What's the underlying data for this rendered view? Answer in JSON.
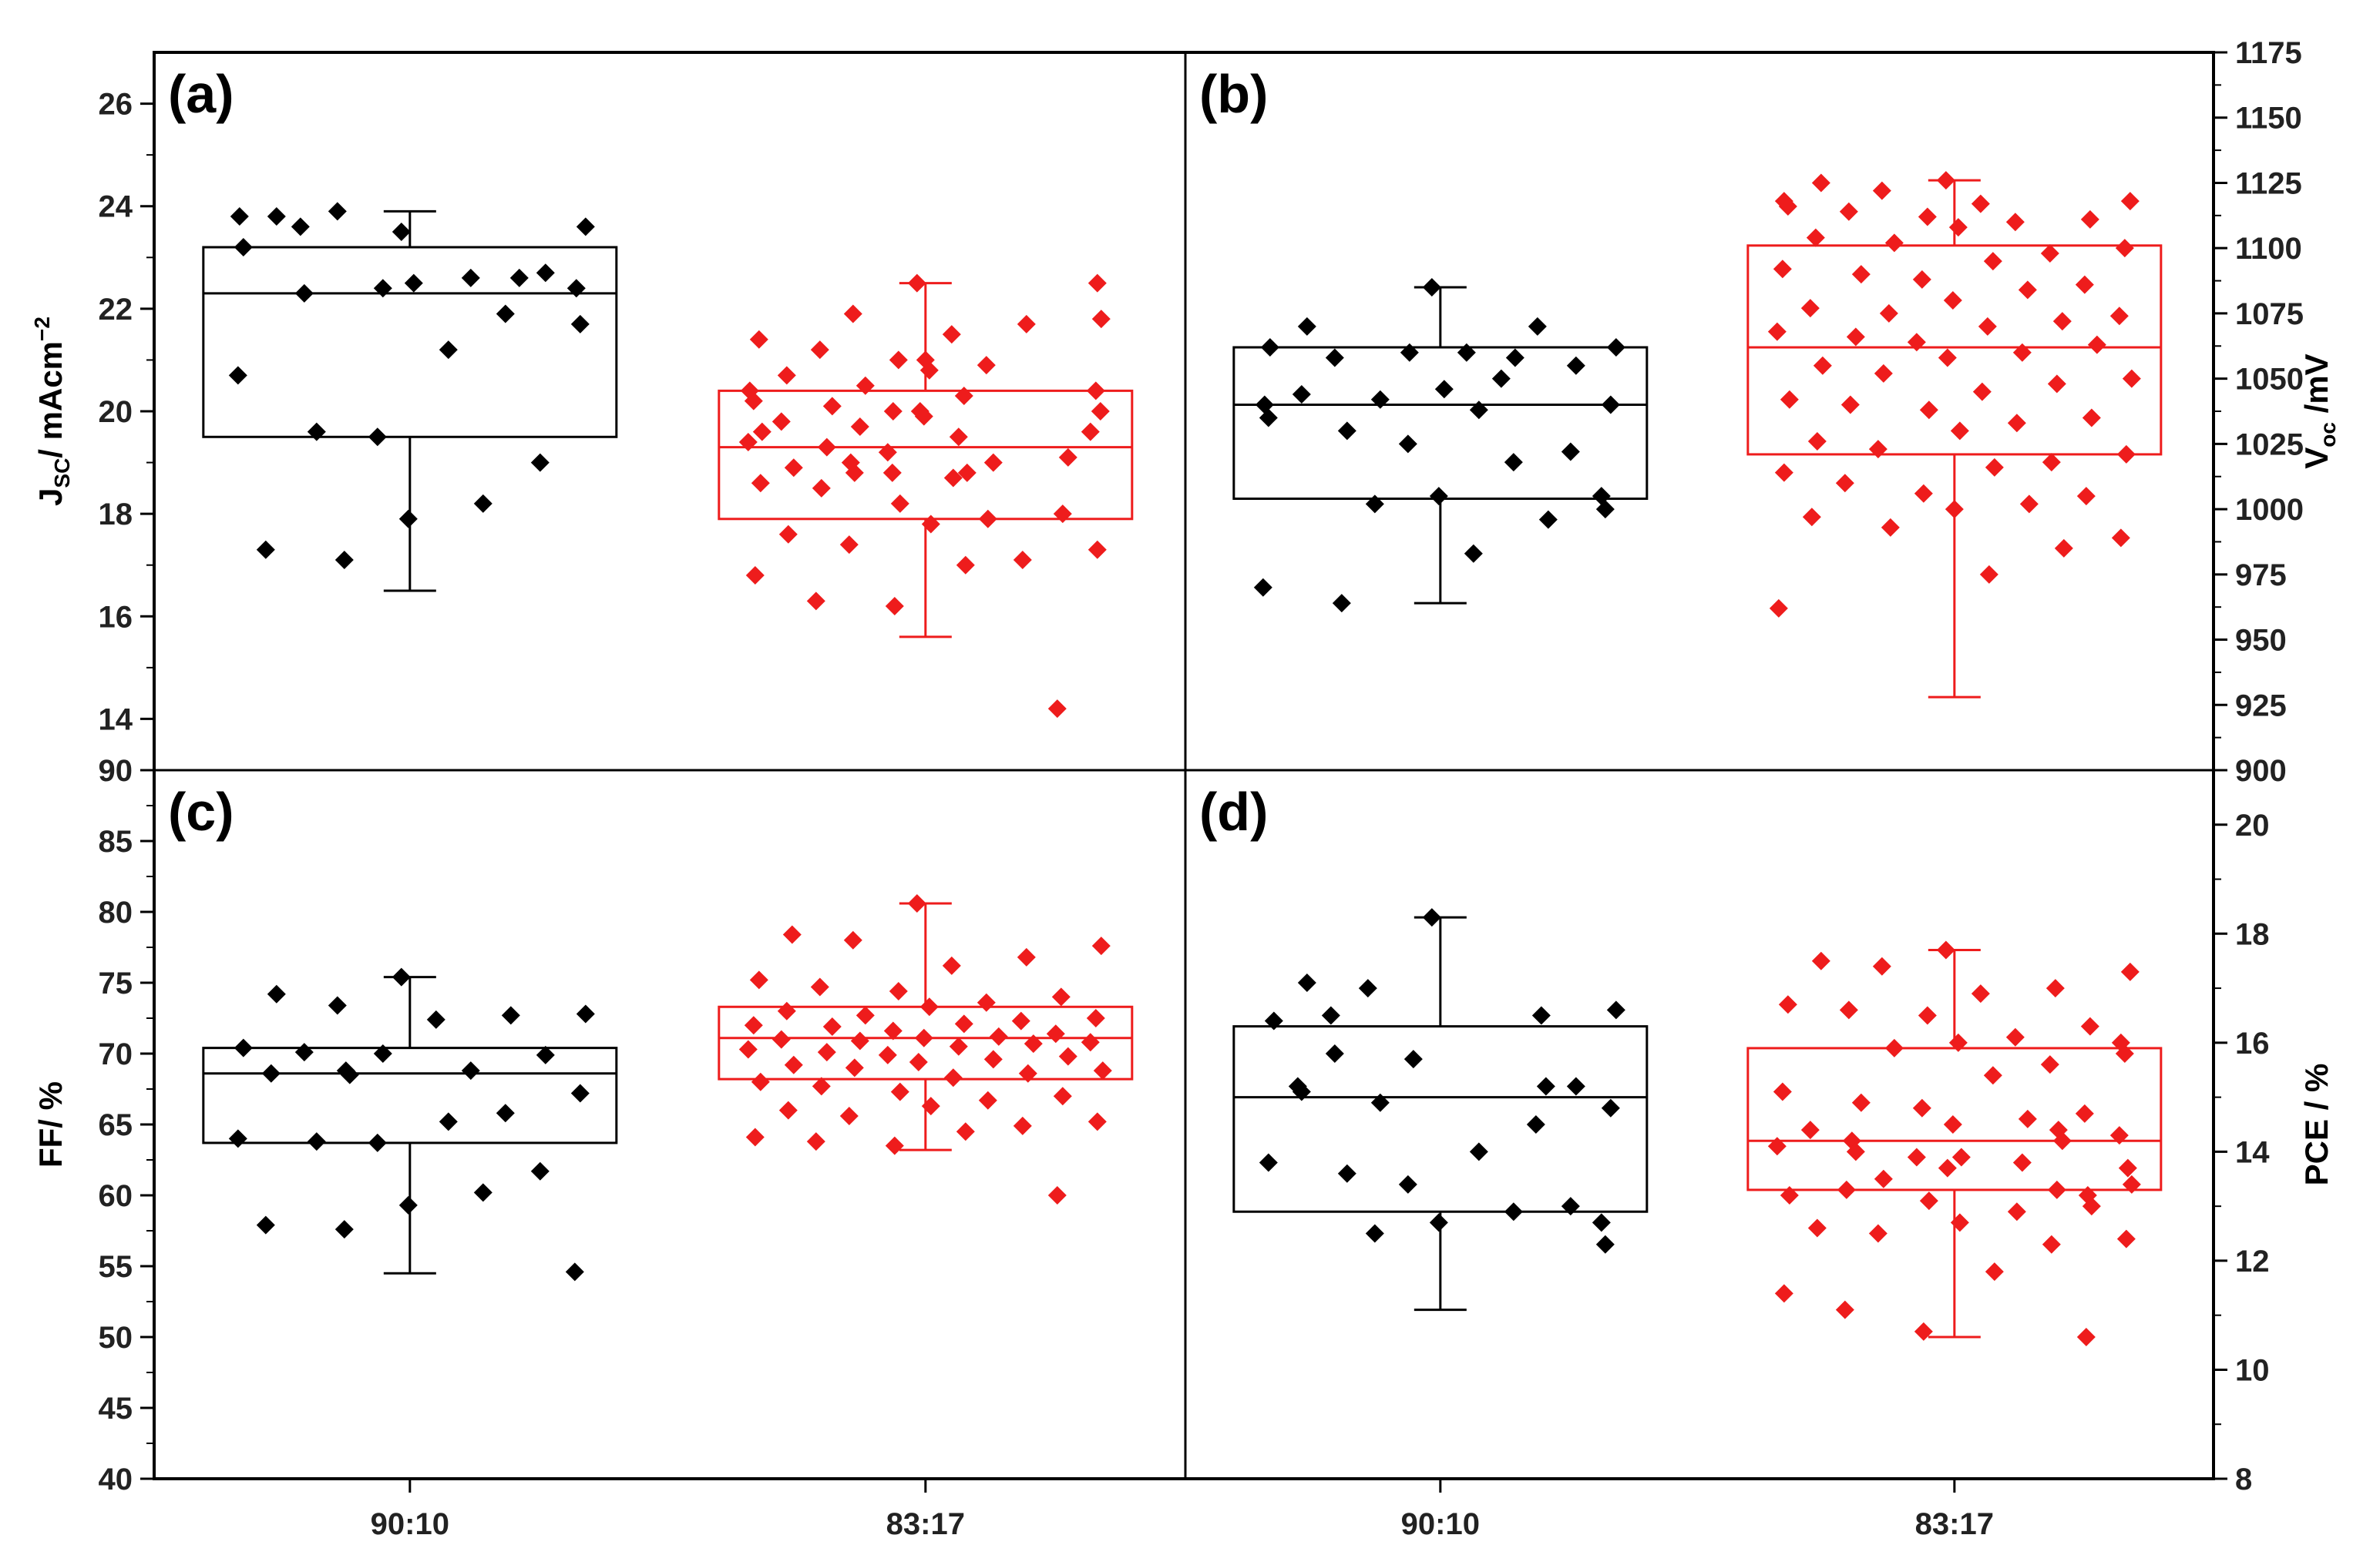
{
  "chart_data": {
    "type": "box",
    "categories": [
      "90:10",
      "83:17"
    ],
    "colors": {
      "90:10": "#000000",
      "83:17": "#ee1c1c"
    },
    "panels": [
      {
        "id": "a",
        "label": "(a)",
        "ylabel": {
          "main": "J",
          "sub": "SC",
          "rest": "/ mAcm",
          "sup": "−2"
        },
        "axis_side": "left",
        "ylim": [
          13,
          27
        ],
        "yticks": [
          14,
          16,
          18,
          20,
          22,
          24,
          26
        ],
        "boxes": [
          {
            "category": "90:10",
            "q1": 19.5,
            "median": 22.3,
            "q3": 23.2,
            "whisker_low": 16.5,
            "whisker_high": 23.9
          },
          {
            "category": "83:17",
            "q1": 17.9,
            "median": 19.3,
            "q3": 20.4,
            "whisker_low": 15.6,
            "whisker_high": 22.5
          }
        ],
        "points": {
          "90:10": [
            23.5,
            23.8,
            23.9,
            23.6,
            23.8,
            23.6,
            23.2,
            22.3,
            22.4,
            22.7,
            22.6,
            22.5,
            22.4,
            22.6,
            21.7,
            21.9,
            21.2,
            20.7,
            19.6,
            19.5,
            19.0,
            18.2,
            17.9,
            17.3,
            17.1
          ],
          "83:17": [
            22.5,
            22.5,
            21.9,
            21.8,
            21.7,
            21.5,
            21.4,
            21.2,
            21.0,
            21.0,
            20.9,
            20.8,
            20.7,
            20.5,
            20.4,
            20.4,
            20.3,
            20.2,
            20.1,
            20.0,
            20.0,
            20.0,
            19.9,
            19.8,
            19.7,
            19.6,
            19.6,
            19.5,
            19.4,
            19.3,
            19.2,
            19.1,
            19.0,
            19.0,
            18.9,
            18.8,
            18.8,
            18.8,
            18.7,
            18.6,
            18.5,
            18.2,
            18.0,
            17.9,
            17.8,
            17.6,
            17.4,
            17.3,
            17.1,
            17.0,
            16.8,
            16.3,
            16.2,
            14.2
          ]
        }
      },
      {
        "id": "b",
        "label": "(b)",
        "ylabel": {
          "main": "V",
          "sub": "oc",
          "rest": " /mV",
          "sup": ""
        },
        "axis_side": "right",
        "ylim": [
          900,
          1175
        ],
        "yticks": [
          900,
          925,
          950,
          975,
          1000,
          1025,
          1050,
          1075,
          1100,
          1125,
          1150,
          1175
        ],
        "boxes": [
          {
            "category": "90:10",
            "q1": 1004,
            "median": 1040,
            "q3": 1062,
            "whisker_low": 964,
            "whisker_high": 1085
          },
          {
            "category": "83:17",
            "q1": 1021,
            "median": 1062,
            "q3": 1101,
            "whisker_low": 928,
            "whisker_high": 1126
          }
        ],
        "points": {
          "90:10": [
            1085,
            1070,
            1070,
            1062,
            1062,
            1060,
            1060,
            1058,
            1058,
            1055,
            1050,
            1046,
            1044,
            1042,
            1040,
            1040,
            1038,
            1035,
            1030,
            1025,
            1022,
            1018,
            1005,
            1005,
            1002,
            1000,
            996,
            983,
            970,
            964
          ],
          "83:17": [
            1126,
            1125,
            1122,
            1118,
            1118,
            1117,
            1116,
            1114,
            1112,
            1111,
            1110,
            1108,
            1104,
            1102,
            1100,
            1098,
            1095,
            1092,
            1090,
            1088,
            1086,
            1084,
            1080,
            1077,
            1075,
            1074,
            1072,
            1070,
            1068,
            1066,
            1064,
            1063,
            1060,
            1058,
            1055,
            1052,
            1050,
            1048,
            1045,
            1042,
            1040,
            1038,
            1035,
            1033,
            1030,
            1026,
            1023,
            1021,
            1018,
            1016,
            1014,
            1010,
            1006,
            1005,
            1002,
            1000,
            997,
            993,
            989,
            985,
            975,
            962
          ]
        }
      },
      {
        "id": "c",
        "label": "(c)",
        "ylabel": {
          "main": "FF/ %",
          "sub": "",
          "rest": "",
          "sup": ""
        },
        "axis_side": "left",
        "ylim": [
          40,
          90
        ],
        "yticks": [
          40,
          45,
          50,
          55,
          60,
          65,
          70,
          75,
          80,
          85,
          90
        ],
        "boxes": [
          {
            "category": "90:10",
            "q1": 63.7,
            "median": 68.6,
            "q3": 70.4,
            "whisker_low": 54.5,
            "whisker_high": 75.4
          },
          {
            "category": "83:17",
            "q1": 68.2,
            "median": 71.1,
            "q3": 73.3,
            "whisker_low": 63.2,
            "whisker_high": 80.6
          }
        ],
        "points": {
          "90:10": [
            75.4,
            74.2,
            73.4,
            72.8,
            72.7,
            72.4,
            70.4,
            70.1,
            70.0,
            69.9,
            68.8,
            68.8,
            68.6,
            68.5,
            67.2,
            65.8,
            65.2,
            64.0,
            63.8,
            63.7,
            61.7,
            60.2,
            59.3,
            57.9,
            57.6,
            54.6
          ],
          "83:17": [
            80.6,
            78.4,
            78.0,
            77.6,
            76.8,
            76.2,
            75.2,
            74.7,
            74.4,
            74.0,
            73.6,
            73.3,
            73.0,
            72.7,
            72.5,
            72.3,
            72.1,
            72.0,
            71.9,
            71.6,
            71.4,
            71.2,
            71.1,
            71.0,
            70.9,
            70.8,
            70.7,
            70.5,
            70.3,
            70.1,
            69.9,
            69.8,
            69.6,
            69.4,
            69.2,
            69.0,
            68.8,
            68.6,
            68.3,
            68.0,
            67.7,
            67.3,
            67.0,
            66.7,
            66.3,
            66.0,
            65.6,
            65.2,
            64.9,
            64.5,
            64.1,
            63.8,
            63.5,
            60.0
          ]
        }
      },
      {
        "id": "d",
        "label": "(d)",
        "ylabel": {
          "main": "PCE / %",
          "sub": "",
          "rest": "",
          "sup": ""
        },
        "axis_side": "right",
        "ylim": [
          8,
          21
        ],
        "yticks": [
          8,
          10,
          12,
          14,
          16,
          18,
          20
        ],
        "boxes": [
          {
            "category": "90:10",
            "q1": 12.9,
            "median": 15.0,
            "q3": 16.3,
            "whisker_low": 11.1,
            "whisker_high": 18.3
          },
          {
            "category": "83:17",
            "q1": 13.3,
            "median": 14.2,
            "q3": 15.9,
            "whisker_low": 10.6,
            "whisker_high": 17.7
          }
        ],
        "points": {
          "90:10": [
            18.3,
            17.1,
            17.0,
            16.6,
            16.5,
            16.5,
            16.4,
            15.8,
            15.7,
            15.2,
            15.2,
            15.2,
            15.1,
            14.9,
            14.8,
            14.5,
            14.0,
            13.8,
            13.6,
            13.4,
            13.0,
            12.9,
            12.7,
            12.7,
            12.5,
            12.3
          ],
          "83:17": [
            17.7,
            17.5,
            17.4,
            17.3,
            17.0,
            16.9,
            16.7,
            16.6,
            16.5,
            16.3,
            16.1,
            16.0,
            16.0,
            15.9,
            15.8,
            15.6,
            15.4,
            15.1,
            14.9,
            14.8,
            14.7,
            14.6,
            14.5,
            14.4,
            14.4,
            14.3,
            14.2,
            14.2,
            14.1,
            14.0,
            13.9,
            13.9,
            13.8,
            13.7,
            13.7,
            13.5,
            13.4,
            13.3,
            13.3,
            13.2,
            13.2,
            13.1,
            13.0,
            12.9,
            12.7,
            12.6,
            12.5,
            12.4,
            12.3,
            11.8,
            11.4,
            11.1,
            10.7,
            10.6
          ]
        }
      }
    ]
  }
}
